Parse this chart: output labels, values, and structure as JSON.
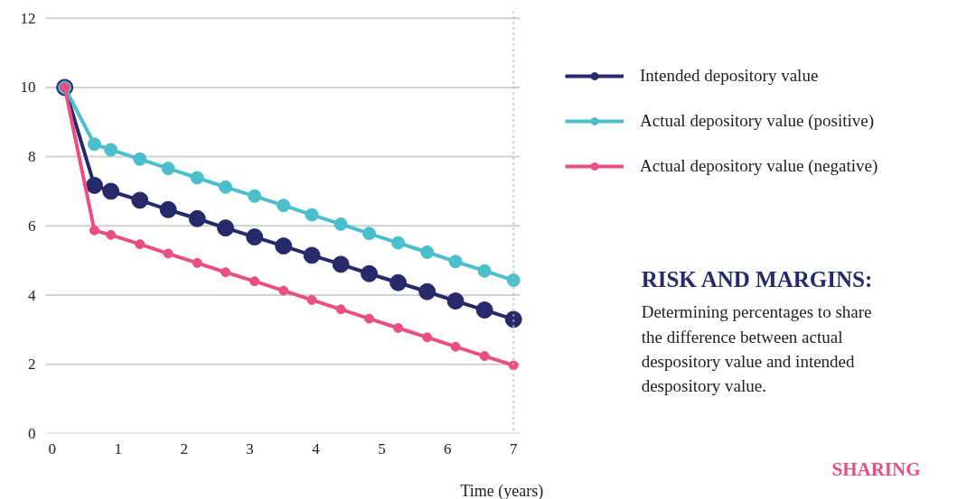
{
  "chart_data": {
    "type": "line",
    "x": [
      0.19,
      0.64,
      0.89,
      1.33,
      1.76,
      2.2,
      2.63,
      3.07,
      3.51,
      3.94,
      4.38,
      4.81,
      5.25,
      5.69,
      6.12,
      6.56,
      7.0
    ],
    "series": [
      {
        "name": "Intended depository value",
        "color": "#262a6b",
        "values": [
          10,
          7.17,
          7.0,
          6.74,
          6.47,
          6.21,
          5.94,
          5.68,
          5.42,
          5.15,
          4.89,
          4.62,
          4.36,
          4.1,
          3.83,
          3.57,
          3.3
        ]
      },
      {
        "name": "Actual depository value (positive)",
        "color": "#4bbfcc",
        "values": [
          10,
          8.36,
          8.2,
          7.93,
          7.66,
          7.39,
          7.12,
          6.86,
          6.59,
          6.32,
          6.05,
          5.78,
          5.51,
          5.24,
          4.97,
          4.7,
          4.43
        ]
      },
      {
        "name": "Actual depository value (negative)",
        "color": "#e84f84",
        "values": [
          10,
          5.87,
          5.74,
          5.47,
          5.2,
          4.93,
          4.66,
          4.4,
          4.13,
          3.86,
          3.59,
          3.32,
          3.05,
          2.78,
          2.51,
          2.24,
          1.97
        ]
      }
    ],
    "xlabel": "Time (years)",
    "xlim": [
      -0.1,
      7.1
    ],
    "xticks": [
      0,
      1,
      2,
      3,
      4,
      5,
      6,
      7
    ],
    "ylim": [
      0,
      12.2
    ],
    "yticks": [
      0,
      2,
      4,
      6,
      8,
      10,
      12
    ],
    "grid": "y",
    "legend": "right",
    "marker": "circle",
    "line_style": "solid",
    "ref_lines": [
      {
        "axis": "x",
        "value": 7,
        "label": null,
        "color": "#bbbbbb",
        "line_style": "dotted"
      }
    ],
    "annotations": [
      "RISK AND MARGINS:",
      "Determining percentages to share the difference between actual despository value and intended despository value.",
      "SHARING"
    ]
  }
}
